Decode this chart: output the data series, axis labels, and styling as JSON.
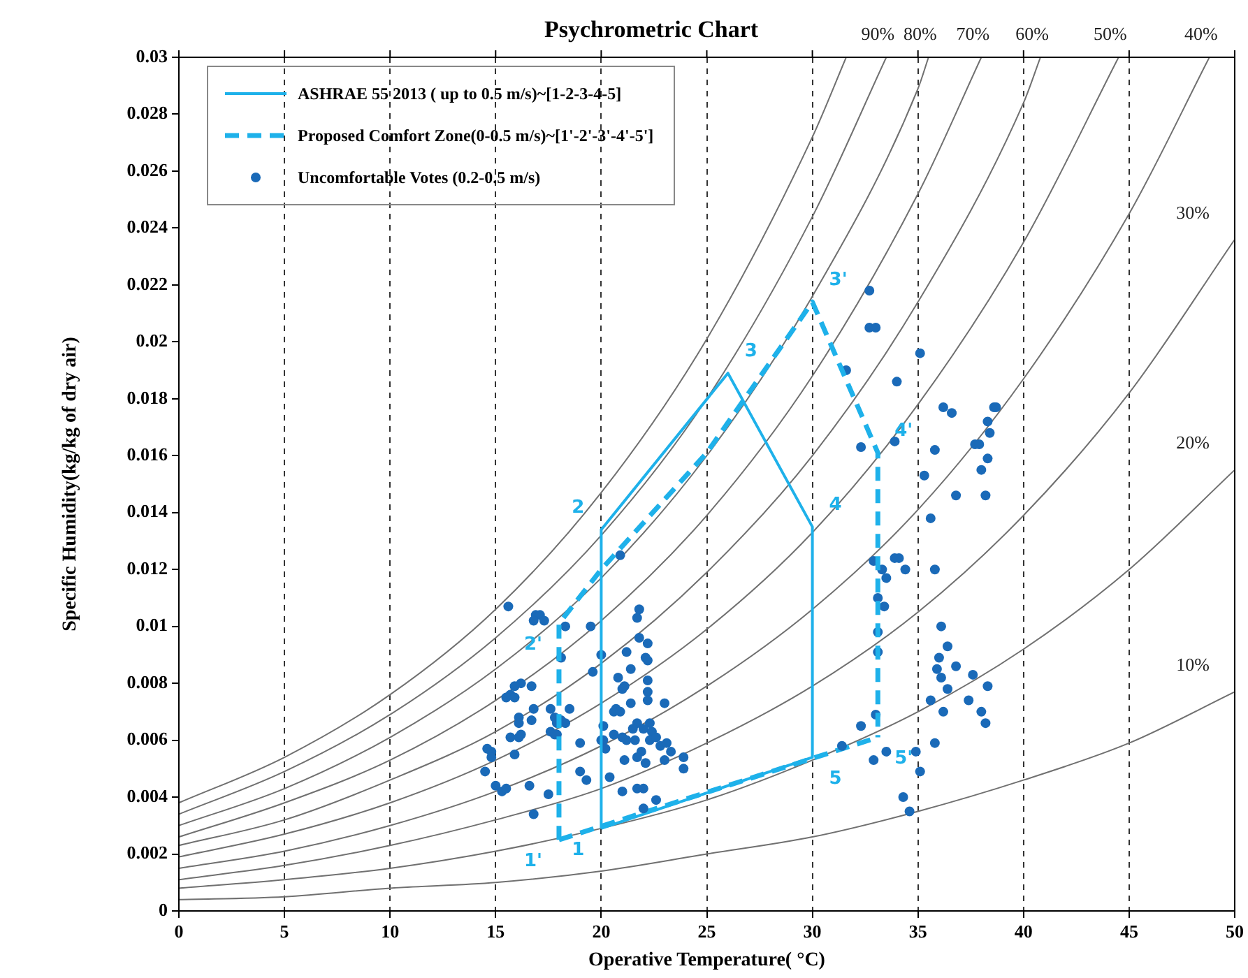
{
  "chart_data": {
    "type": "scatter",
    "title": "Psychrometric Chart",
    "xlabel": "Operative Temperature( °C)",
    "ylabel": "Specific Humidity(kg/kg of dry air)",
    "xlim": [
      0,
      50
    ],
    "xticks": [
      0,
      5,
      10,
      15,
      20,
      25,
      30,
      35,
      40,
      45,
      50
    ],
    "ylim": [
      0,
      0.03
    ],
    "yticks": [
      0,
      0.002,
      0.004,
      0.006,
      0.008,
      0.01,
      0.012,
      0.014,
      0.016,
      0.018,
      0.02,
      0.022,
      0.024,
      0.026,
      0.028,
      0.03
    ],
    "grid": "x",
    "legend": "top left",
    "series": [
      {
        "type": "line",
        "name": "ASHRAE 55 2013 ( up to 0.5 m/s)~[1-2-3-4-5]",
        "color": "#1eb1ea",
        "line_style": "solid",
        "x": [
          20,
          20,
          26,
          30,
          30
        ],
        "values": [
          0.0029,
          0.0134,
          0.0189,
          0.0135,
          0.0054
        ]
      },
      {
        "type": "line",
        "name": "Proposed Comfort Zone(0-0.5 m/s)~[1'-2'-3'-4'-5']",
        "color": "#1eb1ea",
        "line_style": "dashed",
        "x": [
          18,
          18,
          20,
          25,
          30,
          33.1,
          33.1
        ],
        "values": [
          0.0025,
          0.0101,
          0.012,
          0.0161,
          0.0214,
          0.0161,
          0.0061
        ]
      },
      {
        "type": "scatter",
        "name": "Uncomfortable Votes (0.2-0.5 m/s)",
        "color": "#1a6ab8",
        "marker": "circle",
        "x": [
          15.6,
          16.9,
          17.1,
          17.3,
          16.8,
          18.3,
          19.5,
          21.8,
          21.7,
          21.8,
          22.2,
          21.2,
          22.1,
          22.2,
          20.0,
          18.1,
          21.4,
          19.6,
          20.8,
          22.2,
          21.1,
          21.0,
          16.2,
          15.9,
          16.7,
          15.7,
          15.5,
          15.9,
          22.2,
          21.4,
          22.2,
          23.0,
          16.8,
          17.6,
          18.5,
          20.7,
          20.6,
          20.9,
          16.1,
          16.7,
          18.1,
          17.8,
          17.9,
          18.3,
          16.1,
          20.1,
          21.7,
          22.3,
          21.5,
          22.0,
          22.4,
          17.6,
          17.8,
          17.9,
          15.7,
          16.1,
          16.2,
          20.6,
          21.0,
          21.2,
          20.0,
          20.1,
          21.6,
          22.3,
          22.6,
          19.0,
          22.8,
          14.6,
          14.8,
          15.9,
          20.2,
          21.9,
          23.1,
          23.3,
          21.1,
          21.7,
          22.1,
          23.0,
          23.9,
          14.8,
          14.5,
          23.9,
          19.0,
          19.3,
          20.4,
          16.6,
          15.0,
          15.3,
          15.5,
          17.5,
          21.0,
          21.7,
          22.0,
          22.6,
          22.0,
          16.8,
          20.9,
          32.7,
          32.7,
          33.0,
          31.6,
          34.0,
          32.3,
          33.9,
          32.9,
          33.9,
          34.1,
          33.3,
          33.5,
          34.4,
          35.1,
          36.2,
          36.6,
          38.6,
          38.7,
          38.3,
          38.4,
          37.7,
          37.9,
          35.8,
          38.3,
          38.0,
          35.3,
          36.8,
          38.2,
          35.6,
          35.8,
          33.1,
          33.4,
          33.1,
          33.1,
          36.1,
          36.4,
          36.0,
          36.8,
          35.9,
          36.1,
          37.6,
          36.4,
          38.3,
          35.6,
          37.4,
          36.2,
          38.0,
          38.2,
          33.0,
          32.3,
          31.4,
          33.5,
          32.9,
          34.9,
          35.8,
          35.1,
          34.3,
          34.6
        ],
        "values": [
          0.0107,
          0.0104,
          0.0104,
          0.0102,
          0.0102,
          0.01,
          0.01,
          0.0106,
          0.0103,
          0.0096,
          0.0094,
          0.0091,
          0.0089,
          0.0088,
          0.009,
          0.0089,
          0.0085,
          0.0084,
          0.0082,
          0.0081,
          0.0079,
          0.0078,
          0.008,
          0.0079,
          0.0079,
          0.0076,
          0.0075,
          0.0075,
          0.0077,
          0.0073,
          0.0074,
          0.0073,
          0.0071,
          0.0071,
          0.0071,
          0.0071,
          0.007,
          0.007,
          0.0068,
          0.0067,
          0.0067,
          0.0068,
          0.0066,
          0.0066,
          0.0066,
          0.0065,
          0.0066,
          0.0066,
          0.0064,
          0.0064,
          0.0063,
          0.0063,
          0.0062,
          0.0062,
          0.0061,
          0.0061,
          0.0062,
          0.0062,
          0.0061,
          0.006,
          0.006,
          0.006,
          0.006,
          0.006,
          0.0061,
          0.0059,
          0.0058,
          0.0057,
          0.0056,
          0.0055,
          0.0057,
          0.0056,
          0.0059,
          0.0056,
          0.0053,
          0.0054,
          0.0052,
          0.0053,
          0.0054,
          0.0054,
          0.0049,
          0.005,
          0.0049,
          0.0046,
          0.0047,
          0.0044,
          0.0044,
          0.0042,
          0.0043,
          0.0041,
          0.0042,
          0.0043,
          0.0043,
          0.0039,
          0.0036,
          0.0034,
          0.0125,
          0.0218,
          0.0205,
          0.0205,
          0.019,
          0.0186,
          0.0163,
          0.0165,
          0.0123,
          0.0124,
          0.0124,
          0.012,
          0.0117,
          0.012,
          0.0196,
          0.0177,
          0.0175,
          0.0177,
          0.0177,
          0.0172,
          0.0168,
          0.0164,
          0.0164,
          0.0162,
          0.0159,
          0.0155,
          0.0153,
          0.0146,
          0.0146,
          0.0138,
          0.012,
          0.011,
          0.0107,
          0.0098,
          0.0091,
          0.01,
          0.0093,
          0.0089,
          0.0086,
          0.0085,
          0.0082,
          0.0083,
          0.0078,
          0.0079,
          0.0074,
          0.0074,
          0.007,
          0.007,
          0.0066,
          0.0069,
          0.0065,
          0.0058,
          0.0056,
          0.0053,
          0.0056,
          0.0059,
          0.0049,
          0.004,
          0.0035
        ]
      },
      {
        "type": "line",
        "color": "#1eb1ea",
        "line_style": "solid",
        "x": [
          20,
          30
        ],
        "values": [
          0.0029,
          0.0054
        ]
      },
      {
        "type": "line",
        "color": "#1eb1ea",
        "line_style": "dashed",
        "x": [
          18,
          33.1
        ],
        "values": [
          0.0025,
          0.0061
        ]
      },
      {
        "type": "line",
        "color": "#707070",
        "x": [
          0,
          5,
          10,
          15,
          20,
          25,
          30,
          31.6
        ],
        "values": [
          0.0038,
          0.0054,
          0.0076,
          0.0106,
          0.0147,
          0.0201,
          0.0272,
          0.03
        ]
      },
      {
        "type": "line",
        "name": "90%",
        "color": "#707070",
        "x": [
          0,
          5,
          10,
          15,
          20,
          25,
          30,
          33.5
        ],
        "values": [
          0.0034,
          0.0049,
          0.0069,
          0.0096,
          0.0132,
          0.018,
          0.0244,
          0.03
        ]
      },
      {
        "type": "line",
        "name": "80%",
        "color": "#707070",
        "x": [
          0,
          5,
          10,
          15,
          20,
          25,
          30,
          35,
          35.5
        ],
        "values": [
          0.003,
          0.0043,
          0.0061,
          0.0085,
          0.0117,
          0.016,
          0.0216,
          0.0289,
          0.03
        ]
      },
      {
        "type": "line",
        "name": "70%",
        "color": "#707070",
        "x": [
          0,
          5,
          10,
          15,
          20,
          25,
          30,
          35,
          38
        ],
        "values": [
          0.0026,
          0.0038,
          0.0053,
          0.0074,
          0.0102,
          0.0139,
          0.0188,
          0.0252,
          0.03
        ]
      },
      {
        "type": "line",
        "name": "60%",
        "color": "#707070",
        "x": [
          0,
          5,
          10,
          15,
          20,
          25,
          30,
          35,
          40,
          40.8
        ],
        "values": [
          0.0023,
          0.0032,
          0.0046,
          0.0063,
          0.0087,
          0.0119,
          0.016,
          0.0214,
          0.0284,
          0.03
        ]
      },
      {
        "type": "line",
        "name": "50%",
        "color": "#707070",
        "x": [
          0,
          5,
          10,
          15,
          20,
          25,
          30,
          35,
          40,
          44.5
        ],
        "values": [
          0.0019,
          0.0027,
          0.0038,
          0.0053,
          0.0073,
          0.0099,
          0.0133,
          0.0178,
          0.0235,
          0.03
        ]
      },
      {
        "type": "line",
        "name": "40%",
        "color": "#707070",
        "x": [
          0,
          5,
          10,
          15,
          20,
          25,
          30,
          35,
          40,
          45,
          48.8
        ],
        "values": [
          0.0015,
          0.0021,
          0.003,
          0.0042,
          0.0058,
          0.0079,
          0.0106,
          0.0141,
          0.0187,
          0.0245,
          0.03
        ]
      },
      {
        "type": "line",
        "name": "30%",
        "color": "#707070",
        "x": [
          0,
          5,
          10,
          15,
          20,
          25,
          30,
          35,
          40,
          45,
          50
        ],
        "values": [
          0.0011,
          0.0016,
          0.0023,
          0.0032,
          0.0043,
          0.0059,
          0.0079,
          0.0105,
          0.0139,
          0.0182,
          0.0236
        ]
      },
      {
        "type": "line",
        "name": "20%",
        "color": "#707070",
        "x": [
          0,
          5,
          10,
          15,
          20,
          25,
          30,
          35,
          40,
          45,
          50
        ],
        "values": [
          0.0008,
          0.0011,
          0.0015,
          0.0021,
          0.0029,
          0.0039,
          0.0053,
          0.007,
          0.0092,
          0.012,
          0.0155
        ]
      },
      {
        "type": "line",
        "name": "10%",
        "color": "#707070",
        "x": [
          0,
          5,
          10,
          15,
          20,
          25,
          30,
          35,
          40,
          45,
          50
        ],
        "values": [
          0.0004,
          0.0005,
          0.0008,
          0.001,
          0.0014,
          0.002,
          0.0026,
          0.0035,
          0.0046,
          0.0059,
          0.0077
        ]
      }
    ],
    "annotations": [
      {
        "text": "1",
        "x": 20,
        "y": 0.0029
      },
      {
        "text": "2",
        "x": 20,
        "y": 0.0134
      },
      {
        "text": "3",
        "x": 26,
        "y": 0.0189
      },
      {
        "text": "4",
        "x": 30,
        "y": 0.0135
      },
      {
        "text": "5",
        "x": 30,
        "y": 0.0054
      },
      {
        "text": "1'",
        "x": 18,
        "y": 0.0025
      },
      {
        "text": "2'",
        "x": 18,
        "y": 0.0101
      },
      {
        "text": "3'",
        "x": 30,
        "y": 0.0214
      },
      {
        "text": "4'",
        "x": 33.1,
        "y": 0.0161
      },
      {
        "text": "5'",
        "x": 33.1,
        "y": 0.0061
      }
    ]
  }
}
